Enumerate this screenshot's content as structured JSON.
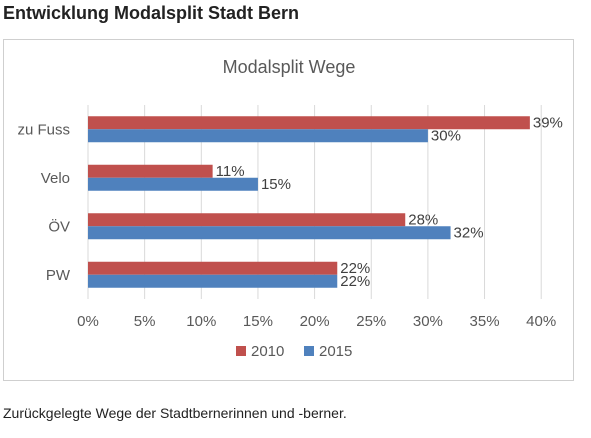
{
  "heading": "Entwicklung Modalsplit Stadt Bern",
  "caption": "Zurückgelegte Wege der Stadtbernerinnen und -berner.",
  "colors": {
    "series_2010": "#c0504d",
    "series_2015": "#4f81bd"
  },
  "chart_data": {
    "type": "bar",
    "orientation": "horizontal",
    "title": "Modalsplit Wege",
    "categories": [
      "zu Fuss",
      "Velo",
      "ÖV",
      "PW"
    ],
    "series": [
      {
        "name": "2010",
        "values": [
          39,
          11,
          28,
          22
        ],
        "labels": [
          "39%",
          "11%",
          "28%",
          "22%"
        ]
      },
      {
        "name": "2015",
        "values": [
          30,
          15,
          32,
          22
        ],
        "labels": [
          "30%",
          "15%",
          "32%",
          "22%"
        ]
      }
    ],
    "xlim": [
      0,
      40
    ],
    "xticks": [
      0,
      5,
      10,
      15,
      20,
      25,
      30,
      35,
      40
    ],
    "xtick_labels": [
      "0%",
      "5%",
      "10%",
      "15%",
      "20%",
      "25%",
      "30%",
      "35%",
      "40%"
    ],
    "xlabel": "",
    "ylabel": "",
    "grid": true,
    "legend_position": "bottom"
  }
}
